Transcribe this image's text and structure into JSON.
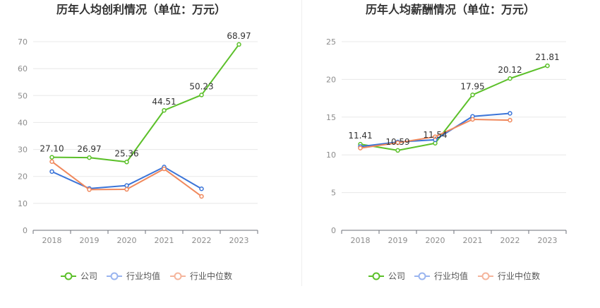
{
  "chart_data": [
    {
      "type": "line",
      "title": "历年人均创利情况（单位：万元）",
      "categories": [
        "2018",
        "2019",
        "2020",
        "2021",
        "2022",
        "2023"
      ],
      "ylim": [
        0,
        70
      ],
      "yticks": [
        0,
        10,
        20,
        30,
        40,
        50,
        60,
        70
      ],
      "grid": true,
      "legend": "bottom",
      "series": [
        {
          "name": "公司",
          "color": "#5cc02a",
          "legend_color": "#5cc02a",
          "values": [
            27.1,
            26.97,
            25.36,
            44.51,
            50.23,
            68.97
          ],
          "labels": [
            "27.10",
            "26.97",
            "25.36",
            "44.51",
            "50.23",
            "68.97"
          ]
        },
        {
          "name": "行业均值",
          "color": "#3b74d8",
          "legend_color": "#9ab5ef",
          "values": [
            21.8,
            15.5,
            16.6,
            23.5,
            15.4,
            null
          ]
        },
        {
          "name": "行业中位数",
          "color": "#f0885c",
          "legend_color": "#f5b59c",
          "values": [
            25.5,
            15.1,
            15.2,
            22.8,
            12.6,
            null
          ]
        }
      ]
    },
    {
      "type": "line",
      "title": "历年人均薪酬情况（单位：万元）",
      "categories": [
        "2018",
        "2019",
        "2020",
        "2021",
        "2022",
        "2023"
      ],
      "ylim": [
        0,
        25
      ],
      "yticks": [
        0,
        5,
        10,
        15,
        20,
        25
      ],
      "grid": true,
      "legend": "bottom",
      "series": [
        {
          "name": "公司",
          "color": "#5cc02a",
          "legend_color": "#5cc02a",
          "values": [
            11.41,
            10.59,
            11.54,
            17.95,
            20.12,
            21.81
          ],
          "labels": [
            "11.41",
            "10.59",
            "11.54",
            "17.95",
            "20.12",
            "21.81"
          ]
        },
        {
          "name": "行业均值",
          "color": "#3b74d8",
          "legend_color": "#9ab5ef",
          "values": [
            11.1,
            11.7,
            12.0,
            15.1,
            15.5,
            null
          ]
        },
        {
          "name": "行业中位数",
          "color": "#f0885c",
          "legend_color": "#f5b59c",
          "values": [
            10.9,
            11.6,
            12.4,
            14.7,
            14.6,
            null
          ]
        }
      ]
    }
  ]
}
